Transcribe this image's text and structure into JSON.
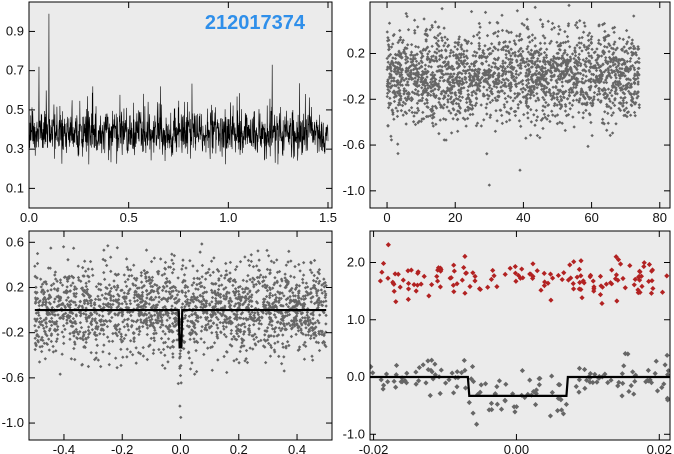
{
  "figure": {
    "target_id": "212017374",
    "target_id_color": "#2f8fea",
    "panel_background": "#ebebeb",
    "point_color": "#666666",
    "model_color": "#000000",
    "secondary_color": "#b22222"
  },
  "chart_data": [
    {
      "type": "line",
      "xlim": [
        0.0,
        1.52
      ],
      "ylim": [
        0.0,
        1.05
      ],
      "xticks": [
        0.0,
        0.5,
        1.0,
        1.5
      ],
      "xtick_labels": [
        "0.0",
        "0.5",
        "1.0",
        "1.5"
      ],
      "yticks": [
        0.1,
        0.3,
        0.5,
        0.7,
        0.9
      ],
      "ytick_labels": [
        "0.1",
        "0.3",
        "0.5",
        "0.7",
        "0.9"
      ],
      "series": [
        {
          "x_range": [
            0.0,
            1.5
          ],
          "baseline": 0.38,
          "noise_sd": 0.06,
          "spikes": [
            [
              0.1,
              0.99
            ],
            [
              0.05,
              0.72
            ],
            [
              1.22,
              0.73
            ],
            [
              0.32,
              0.62
            ],
            [
              0.66,
              0.62
            ]
          ]
        }
      ]
    },
    {
      "type": "scatter",
      "xlim": [
        -5,
        83
      ],
      "ylim": [
        -1.15,
        0.65
      ],
      "xticks": [
        0,
        20,
        40,
        60,
        80
      ],
      "xtick_labels": [
        "0",
        "20",
        "40",
        "60",
        "80"
      ],
      "yticks": [
        0.2,
        -0.2,
        -0.6,
        -1.0
      ],
      "ytick_labels": [
        "0.2",
        "-0.2",
        "-0.6",
        "-1.0"
      ],
      "series": [
        {
          "x_range": [
            0,
            74
          ],
          "center": 0.0,
          "spread": 0.2,
          "count": 2200,
          "outliers": [
            [
              30,
              -0.95
            ],
            [
              39,
              -0.82
            ]
          ]
        }
      ]
    },
    {
      "type": "scatter",
      "xlim": [
        -0.52,
        0.52
      ],
      "ylim": [
        -1.15,
        0.7
      ],
      "xticks": [
        -0.4,
        -0.2,
        0.0,
        0.2,
        0.4
      ],
      "xtick_labels": [
        "-0.4",
        "-0.2",
        "0.0",
        "0.2",
        "0.4"
      ],
      "yticks": [
        0.6,
        0.2,
        -0.2,
        -0.6,
        -1.0
      ],
      "ytick_labels": [
        "0.6",
        "0.2",
        "-0.2",
        "-0.6",
        "-1.0"
      ],
      "series": [
        {
          "x_range": [
            -0.5,
            0.5
          ],
          "center": 0.0,
          "spread": 0.2,
          "count": 2000,
          "outliers": [
            [
              -0.002,
              -0.85
            ],
            [
              0.001,
              -0.95
            ],
            [
              0.0,
              -0.58
            ]
          ]
        }
      ],
      "model": [
        [
          -0.5,
          0.0
        ],
        [
          -0.006,
          0.0
        ],
        [
          -0.003,
          -0.33
        ],
        [
          0.003,
          -0.33
        ],
        [
          0.006,
          0.0
        ],
        [
          0.5,
          0.0
        ]
      ]
    },
    {
      "type": "scatter",
      "xlim": [
        -0.0205,
        0.0215
      ],
      "ylim": [
        -1.1,
        2.55
      ],
      "xticks": [
        -0.02,
        0.0,
        0.02
      ],
      "xtick_labels": [
        "-0.02",
        "0.00",
        "0.02"
      ],
      "yticks": [
        2.0,
        1.0,
        0.0,
        -1.0
      ],
      "ytick_labels": [
        "2.0",
        "1.0",
        "0.0",
        "-1.0"
      ],
      "series": [
        {
          "x_range": [
            -0.0205,
            0.0215
          ],
          "center": 1.72,
          "spread": 0.18,
          "count": 150,
          "color_key": "secondary_color"
        },
        {
          "x_range": [
            -0.0205,
            0.0215
          ],
          "center": 0.0,
          "spread": 0.2,
          "count": 150,
          "transit": [
            -0.0068,
            0.0072,
            -0.33
          ]
        }
      ],
      "model": [
        [
          -0.0205,
          0.0
        ],
        [
          -0.0068,
          0.0
        ],
        [
          -0.0066,
          -0.33
        ],
        [
          0.007,
          -0.33
        ],
        [
          0.0072,
          0.0
        ],
        [
          0.0215,
          0.0
        ]
      ]
    }
  ]
}
